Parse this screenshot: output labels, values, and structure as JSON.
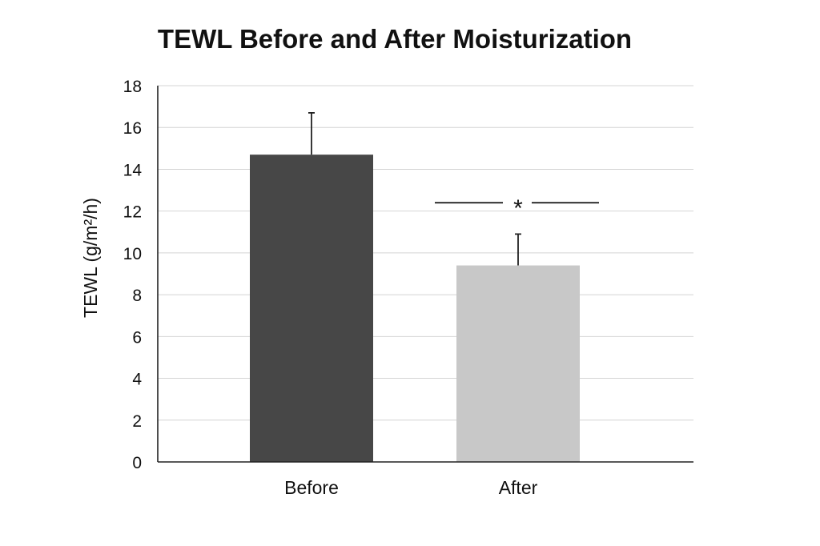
{
  "chart_data": {
    "type": "bar",
    "title": "TEWL Before and After Moisturization",
    "ylabel": "TEWL (g/m²/h)",
    "xlabel": "",
    "categories": [
      "Before",
      "After"
    ],
    "values": [
      14.7,
      9.4
    ],
    "error_upper": [
      16.7,
      10.9
    ],
    "bar_colors": [
      "#474747",
      "#c8c8c8"
    ],
    "ylim": [
      0,
      18
    ],
    "yticks": [
      0,
      2,
      4,
      6,
      8,
      10,
      12,
      14,
      16,
      18
    ],
    "grid": true,
    "annotations": [
      {
        "text": "*",
        "type": "significance",
        "y": 12.4
      }
    ]
  }
}
